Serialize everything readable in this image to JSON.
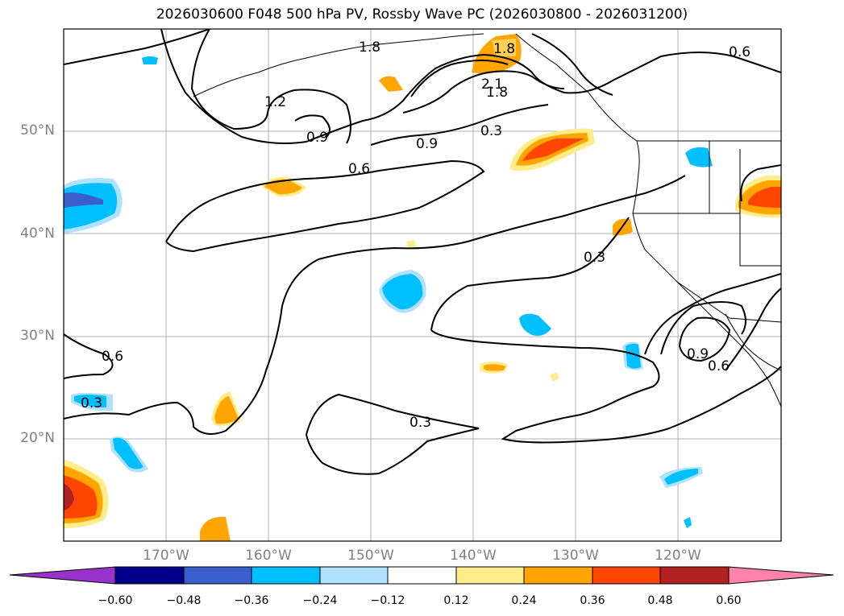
{
  "title": "2026030600 F048 500 hPa PV, Rossby Wave PC (2026030800 - 2026031200)",
  "map": {
    "lon_range": [
      -180,
      -110
    ],
    "lat_range": [
      10,
      60
    ],
    "lat_labels": [
      "50°N",
      "40°N",
      "30°N",
      "20°N"
    ],
    "lon_labels": [
      "170°W",
      "160°W",
      "150°W",
      "140°W",
      "130°W",
      "120°W"
    ],
    "contour_labels": [
      "1.8",
      "1.8",
      "2.1",
      "1.8",
      "1.2",
      "0.9",
      "0.9",
      "0.3",
      "0.6",
      "0.6",
      "0.3",
      "0.9",
      "0.6",
      "0.6",
      "0.3",
      "0.3"
    ]
  },
  "colorbar": {
    "ticks": [
      "−0.60",
      "−0.48",
      "−0.36",
      "−0.24",
      "−0.12",
      "0.12",
      "0.24",
      "0.36",
      "0.48",
      "0.60"
    ],
    "colors": [
      "#9932cc",
      "#00008b",
      "#3a5fcd",
      "#00bfff",
      "#b0e2ff",
      "#ffffff",
      "#ffec8b",
      "#ffa500",
      "#ff4500",
      "#b22222",
      "#ff82ab"
    ]
  }
}
